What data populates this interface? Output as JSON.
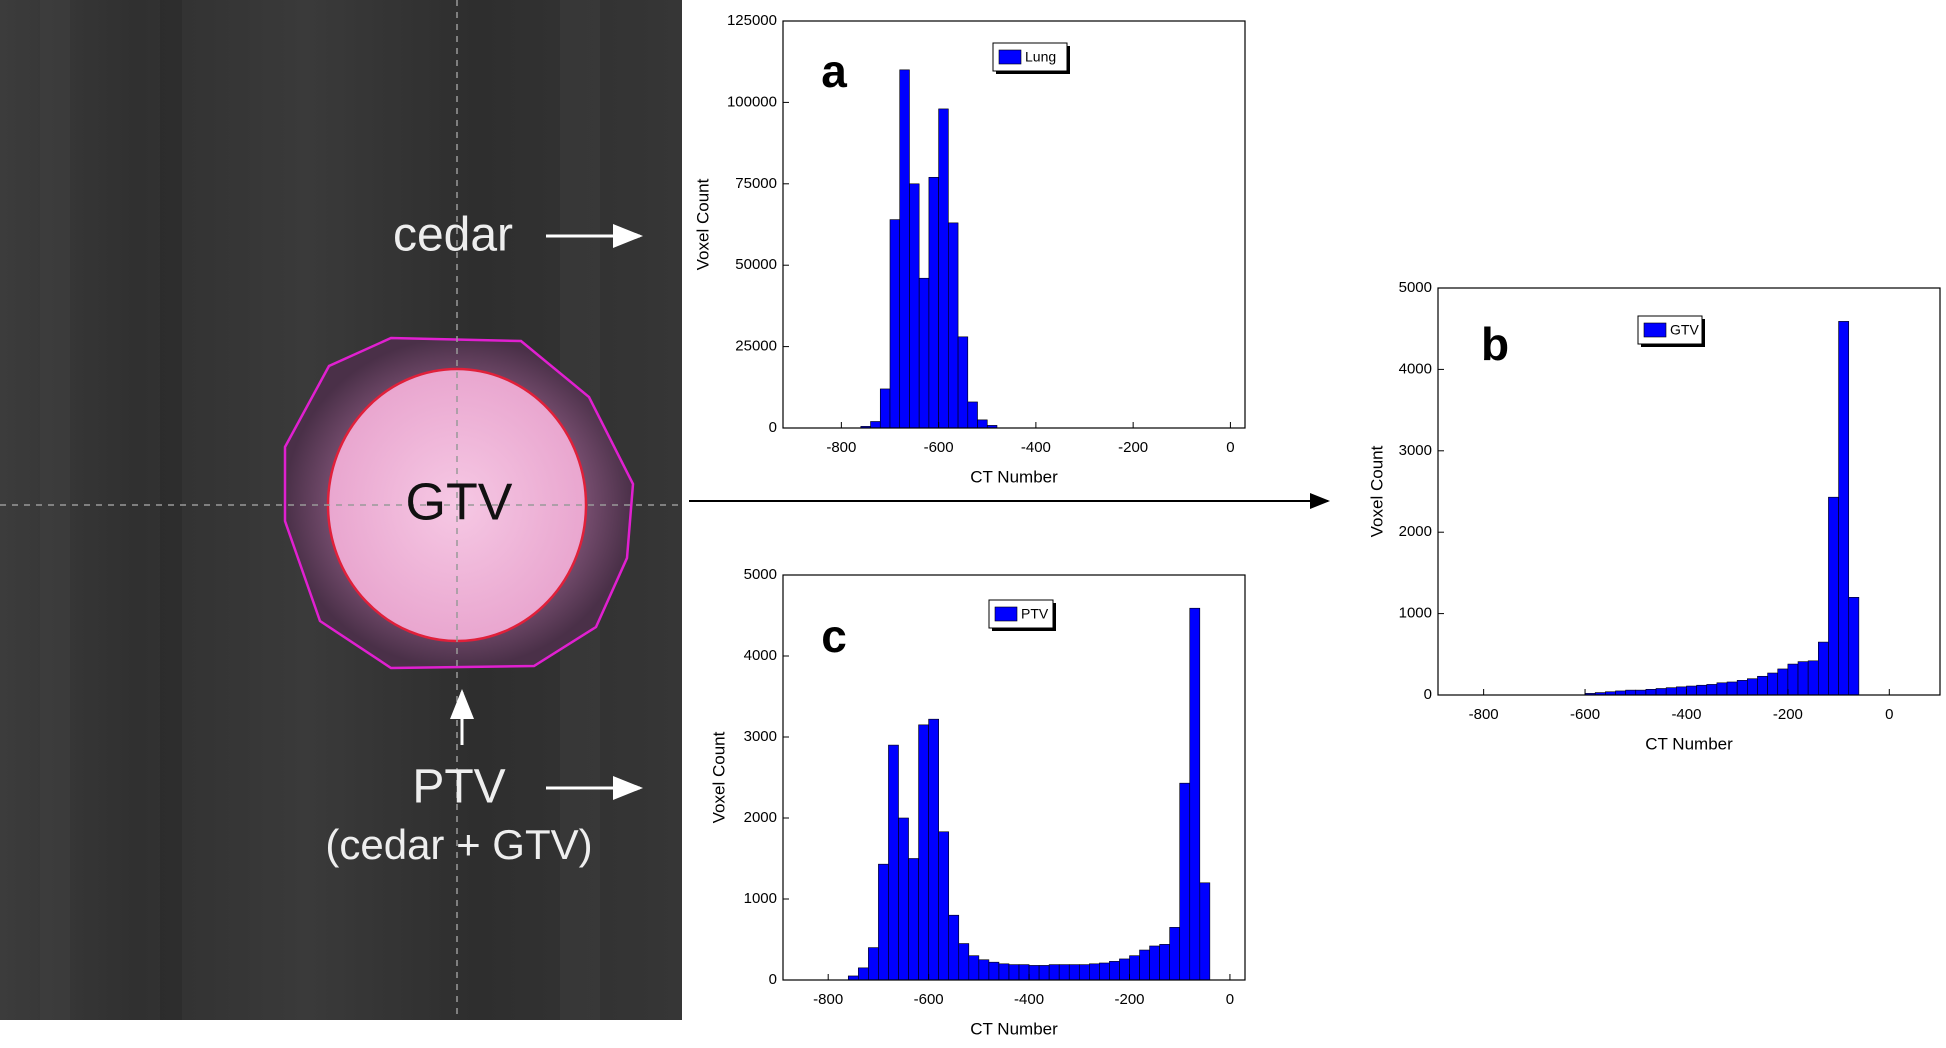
{
  "image_panel": {
    "labels": {
      "cedar": "cedar",
      "gtv": "GTV",
      "ptv": "PTV",
      "ptv_note": "(cedar + GTV)"
    }
  },
  "chart_data": [
    {
      "type": "histogram",
      "panel_label": "a",
      "x_label": "CT Number",
      "y_label": "Voxel Count",
      "bins": [
        -760,
        -740,
        -720,
        -700,
        -680,
        -660,
        -640,
        -620,
        -600,
        -580,
        -560,
        -540,
        -520,
        -500,
        -480
      ],
      "series": [
        {
          "name": "Lung",
          "color": "#0000ff",
          "values": [
            500,
            2000,
            12000,
            64000,
            110000,
            75000,
            46000,
            77000,
            98000,
            63000,
            28000,
            8000,
            2500,
            800
          ]
        }
      ],
      "xlim": [
        -920,
        30
      ],
      "xticks": [
        -800,
        -600,
        -400,
        -200,
        0
      ],
      "ylim": [
        0,
        125000
      ],
      "yticks": [
        0,
        25000,
        50000,
        75000,
        100000,
        125000
      ]
    },
    {
      "type": "histogram",
      "panel_label": "b",
      "x_label": "CT Number",
      "y_label": "Voxel Count",
      "bins": [
        -600,
        -580,
        -560,
        -540,
        -520,
        -500,
        -480,
        -460,
        -440,
        -420,
        -400,
        -380,
        -360,
        -340,
        -320,
        -300,
        -280,
        -260,
        -240,
        -220,
        -200,
        -180,
        -160,
        -140,
        -120,
        -100,
        -80,
        -60
      ],
      "series": [
        {
          "name": "GTV",
          "color": "#0000ff",
          "values": [
            20,
            30,
            40,
            50,
            60,
            60,
            70,
            80,
            90,
            100,
            110,
            120,
            130,
            150,
            160,
            180,
            200,
            230,
            270,
            320,
            380,
            410,
            420,
            650,
            2430,
            4590,
            1200
          ]
        }
      ],
      "xlim": [
        -890,
        100
      ],
      "xticks": [
        -800,
        -600,
        -400,
        -200,
        0
      ],
      "ylim": [
        0,
        5000
      ],
      "yticks": [
        0,
        1000,
        2000,
        3000,
        4000,
        5000
      ]
    },
    {
      "type": "histogram",
      "panel_label": "c",
      "x_label": "CT Number",
      "y_label": "Voxel Count",
      "bins": [
        -760,
        -740,
        -720,
        -700,
        -680,
        -660,
        -640,
        -620,
        -600,
        -580,
        -560,
        -540,
        -520,
        -500,
        -480,
        -460,
        -440,
        -420,
        -400,
        -380,
        -360,
        -340,
        -320,
        -300,
        -280,
        -260,
        -240,
        -220,
        -200,
        -180,
        -160,
        -140,
        -120,
        -100,
        -80,
        -60,
        -40
      ],
      "series": [
        {
          "name": "PTV",
          "color": "#0000ff",
          "values": [
            50,
            150,
            400,
            1430,
            2900,
            2000,
            1500,
            3150,
            3220,
            1830,
            800,
            450,
            300,
            250,
            220,
            200,
            190,
            190,
            180,
            180,
            190,
            190,
            190,
            190,
            200,
            210,
            230,
            260,
            300,
            370,
            420,
            440,
            650,
            2430,
            4590,
            1200
          ]
        }
      ],
      "xlim": [
        -890,
        30
      ],
      "xticks": [
        -800,
        -600,
        -400,
        -200,
        0
      ],
      "ylim": [
        0,
        5000
      ],
      "yticks": [
        0,
        1000,
        2000,
        3000,
        4000,
        5000
      ]
    }
  ]
}
